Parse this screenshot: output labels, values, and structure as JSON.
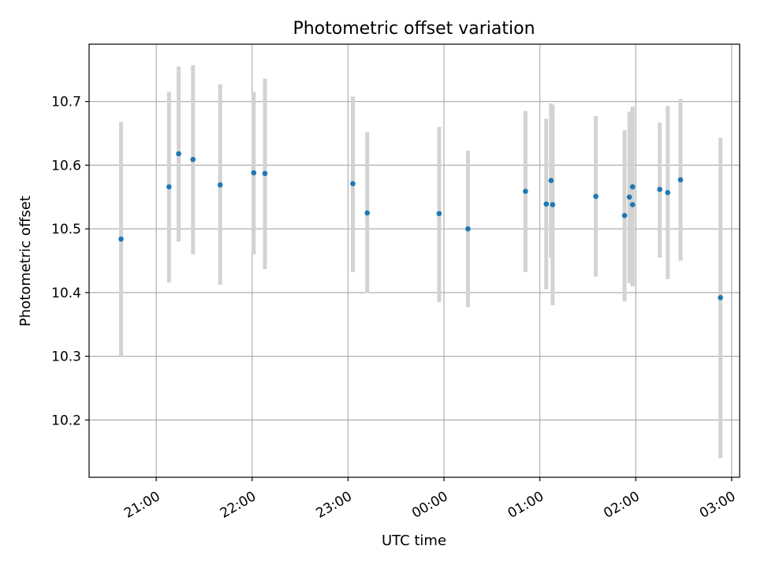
{
  "chart_data": {
    "type": "scatter",
    "title": "Photometric offset variation",
    "xlabel": "UTC time",
    "ylabel": "Photometric offset",
    "grid": true,
    "x_ticks": [
      "21:00",
      "22:00",
      "23:00",
      "00:00",
      "01:00",
      "02:00",
      "03:00"
    ],
    "y_ticks": [
      "10.2",
      "10.3",
      "10.4",
      "10.5",
      "10.6",
      "10.7"
    ],
    "ylim": [
      10.11,
      10.79
    ],
    "colors": {
      "point": "#1f77b4",
      "errorbar": "#d3d3d3",
      "grid": "#b0b0b0"
    },
    "points": [
      {
        "time": "20:38",
        "value": 10.484,
        "err_low": 10.3,
        "err_high": 10.668
      },
      {
        "time": "21:08",
        "value": 10.566,
        "err_low": 10.416,
        "err_high": 10.715
      },
      {
        "time": "21:14",
        "value": 10.618,
        "err_low": 10.48,
        "err_high": 10.755
      },
      {
        "time": "21:23",
        "value": 10.609,
        "err_low": 10.46,
        "err_high": 10.757
      },
      {
        "time": "21:40",
        "value": 10.569,
        "err_low": 10.412,
        "err_high": 10.727
      },
      {
        "time": "22:01",
        "value": 10.588,
        "err_low": 10.46,
        "err_high": 10.715
      },
      {
        "time": "22:08",
        "value": 10.587,
        "err_low": 10.437,
        "err_high": 10.736
      },
      {
        "time": "23:03",
        "value": 10.571,
        "err_low": 10.432,
        "err_high": 10.708
      },
      {
        "time": "23:12",
        "value": 10.525,
        "err_low": 10.399,
        "err_high": 10.652
      },
      {
        "time": "23:57",
        "value": 10.524,
        "err_low": 10.385,
        "err_high": 10.66
      },
      {
        "time": "00:15",
        "value": 10.5,
        "err_low": 10.377,
        "err_high": 10.623
      },
      {
        "time": "00:51",
        "value": 10.559,
        "err_low": 10.432,
        "err_high": 10.685
      },
      {
        "time": "01:04",
        "value": 10.539,
        "err_low": 10.405,
        "err_high": 10.673
      },
      {
        "time": "01:07",
        "value": 10.576,
        "err_low": 10.455,
        "err_high": 10.697
      },
      {
        "time": "01:08",
        "value": 10.538,
        "err_low": 10.38,
        "err_high": 10.695
      },
      {
        "time": "01:35",
        "value": 10.551,
        "err_low": 10.425,
        "err_high": 10.677
      },
      {
        "time": "01:53",
        "value": 10.521,
        "err_low": 10.386,
        "err_high": 10.655
      },
      {
        "time": "01:56",
        "value": 10.55,
        "err_low": 10.415,
        "err_high": 10.684
      },
      {
        "time": "01:58",
        "value": 10.566,
        "err_low": 10.41,
        "err_high": 10.692
      },
      {
        "time": "01:58",
        "value": 10.538,
        "err_low": 10.41,
        "err_high": 10.69
      },
      {
        "time": "02:15",
        "value": 10.562,
        "err_low": 10.455,
        "err_high": 10.667
      },
      {
        "time": "02:20",
        "value": 10.557,
        "err_low": 10.421,
        "err_high": 10.693
      },
      {
        "time": "02:28",
        "value": 10.577,
        "err_low": 10.45,
        "err_high": 10.704
      },
      {
        "time": "02:53",
        "value": 10.392,
        "err_low": 10.14,
        "err_high": 10.643
      }
    ]
  }
}
